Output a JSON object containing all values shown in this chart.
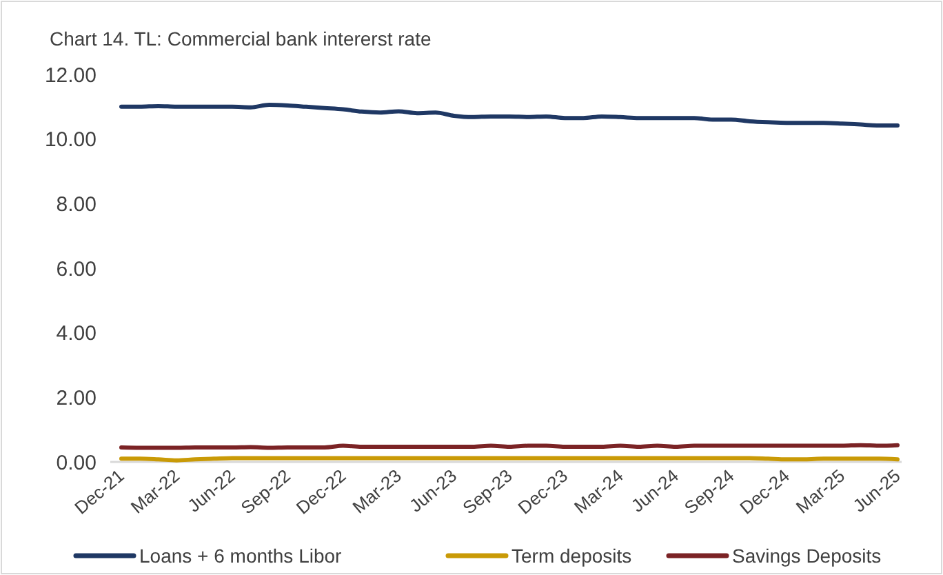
{
  "chart_data": {
    "type": "line",
    "title": "Chart 14. TL: Commercial bank intererst rate",
    "categories": [
      "Dec-21",
      null,
      null,
      "Mar-22",
      null,
      null,
      "Jun-22",
      null,
      null,
      "Sep-22",
      null,
      null,
      "Dec-22",
      null,
      null,
      "Mar-23",
      null,
      null,
      "Jun-23",
      null,
      null,
      "Sep-23",
      null,
      null,
      "Dec-23",
      null,
      null,
      "Mar-24",
      null,
      null,
      "Jun-24",
      null,
      null,
      "Sep-24",
      null,
      null,
      "Dec-24",
      null,
      null,
      "Mar-25",
      null,
      null,
      "Jun-25"
    ],
    "series": [
      {
        "name": "Loans + 6 months Libor",
        "color": "#1f3864",
        "values": [
          11.0,
          11.0,
          11.02,
          11.0,
          11.0,
          11.0,
          11.0,
          10.98,
          11.06,
          11.04,
          11.0,
          10.96,
          10.92,
          10.85,
          10.82,
          10.86,
          10.8,
          10.82,
          10.72,
          10.68,
          10.7,
          10.7,
          10.68,
          10.7,
          10.65,
          10.65,
          10.7,
          10.68,
          10.65,
          10.65,
          10.65,
          10.65,
          10.6,
          10.6,
          10.55,
          10.52,
          10.5,
          10.5,
          10.5,
          10.48,
          10.45,
          10.42,
          10.42
        ]
      },
      {
        "name": "Term deposits",
        "color": "#c99a06",
        "values": [
          0.1,
          0.1,
          0.08,
          0.05,
          0.08,
          0.1,
          0.12,
          0.12,
          0.12,
          0.12,
          0.12,
          0.12,
          0.12,
          0.12,
          0.12,
          0.12,
          0.12,
          0.12,
          0.12,
          0.12,
          0.12,
          0.12,
          0.12,
          0.12,
          0.12,
          0.12,
          0.12,
          0.12,
          0.12,
          0.12,
          0.12,
          0.12,
          0.12,
          0.12,
          0.12,
          0.1,
          0.08,
          0.08,
          0.1,
          0.1,
          0.1,
          0.1,
          0.08
        ]
      },
      {
        "name": "Savings Deposits",
        "color": "#7b2325",
        "values": [
          0.45,
          0.44,
          0.44,
          0.44,
          0.45,
          0.45,
          0.45,
          0.46,
          0.44,
          0.45,
          0.45,
          0.45,
          0.5,
          0.47,
          0.47,
          0.47,
          0.47,
          0.47,
          0.47,
          0.47,
          0.5,
          0.47,
          0.5,
          0.5,
          0.47,
          0.47,
          0.47,
          0.5,
          0.47,
          0.5,
          0.47,
          0.5,
          0.5,
          0.5,
          0.5,
          0.5,
          0.5,
          0.5,
          0.5,
          0.5,
          0.52,
          0.5,
          0.52
        ]
      }
    ],
    "ylim": [
      0,
      12
    ],
    "yticks": [
      {
        "value": 0,
        "label": "0.00"
      },
      {
        "value": 2,
        "label": "2.00"
      },
      {
        "value": 4,
        "label": "4.00"
      },
      {
        "value": 6,
        "label": "6.00"
      },
      {
        "value": 8,
        "label": "8.00"
      },
      {
        "value": 10,
        "label": "10.00"
      },
      {
        "value": 12,
        "label": "12.00"
      }
    ],
    "legend": "bottom",
    "grid": false
  }
}
